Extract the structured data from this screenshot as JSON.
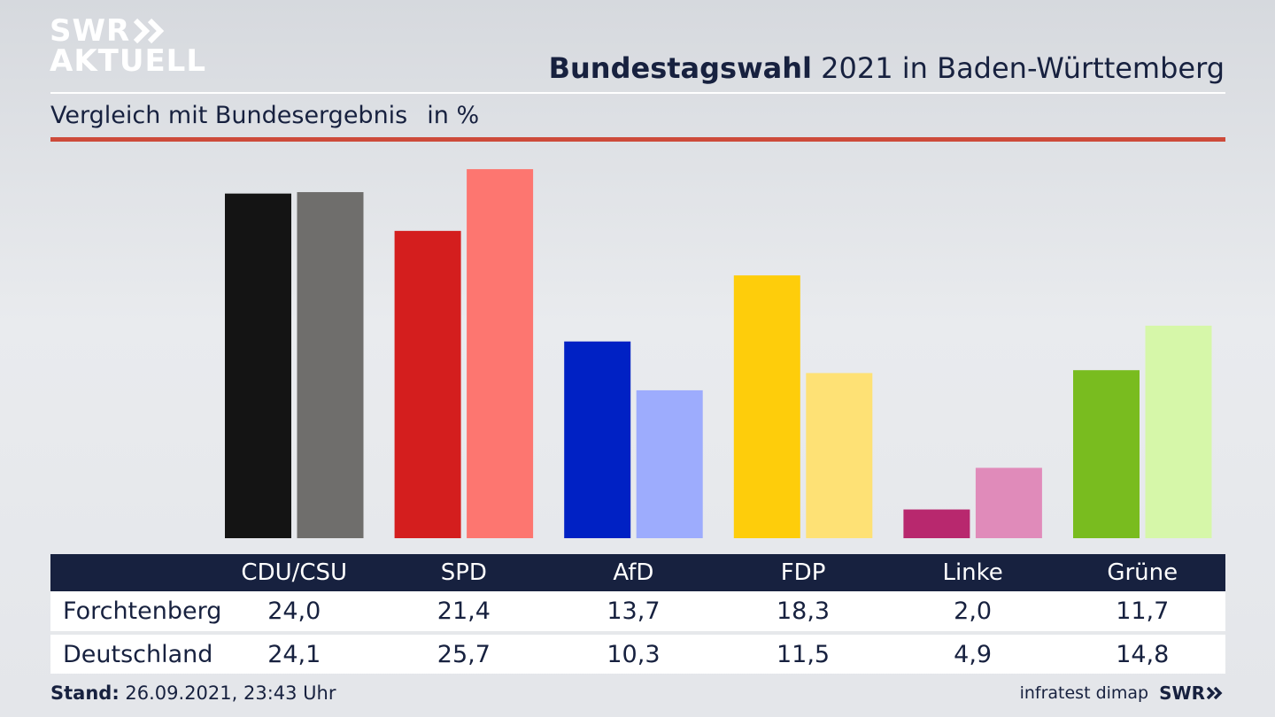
{
  "logo": {
    "line1": "SWR",
    "line2": "AKTUELL"
  },
  "header": {
    "title_bold": "Bundestagswahl",
    "title_rest": " 2021 in Baden-Württemberg",
    "subtitle": "Vergleich mit Bundesergebnis",
    "unit": "in %"
  },
  "chart_data": {
    "type": "bar",
    "categories": [
      "CDU/CSU",
      "SPD",
      "AfD",
      "FDP",
      "Linke",
      "Grüne"
    ],
    "series": [
      {
        "name": "Forchtenberg",
        "values": [
          24.0,
          21.4,
          13.7,
          18.3,
          2.0,
          11.7
        ],
        "labels": [
          "24,0",
          "21,4",
          "13,7",
          "18,3",
          "2,0",
          "11,7"
        ],
        "colors": [
          "#141414",
          "#d41e1e",
          "#0021c4",
          "#fecd0b",
          "#b8286e",
          "#79bc1f"
        ]
      },
      {
        "name": "Deutschland",
        "values": [
          24.1,
          25.7,
          10.3,
          11.5,
          4.9,
          14.8
        ],
        "labels": [
          "24,1",
          "25,7",
          "10,3",
          "11,5",
          "4,9",
          "14,8"
        ],
        "colors": [
          "#6f6e6c",
          "#fd7670",
          "#9dacfd",
          "#fee175",
          "#e08bba",
          "#d6f7a9"
        ]
      }
    ],
    "ylim": [
      0,
      27
    ]
  },
  "footer": {
    "stand_label": "Stand:",
    "stand_value": " 26.09.2021, 23:43 Uhr",
    "source": "infratest dimap",
    "brand": "SWR"
  },
  "colors": {
    "navy": "#17213f",
    "accent_red": "#cd4a3a"
  }
}
